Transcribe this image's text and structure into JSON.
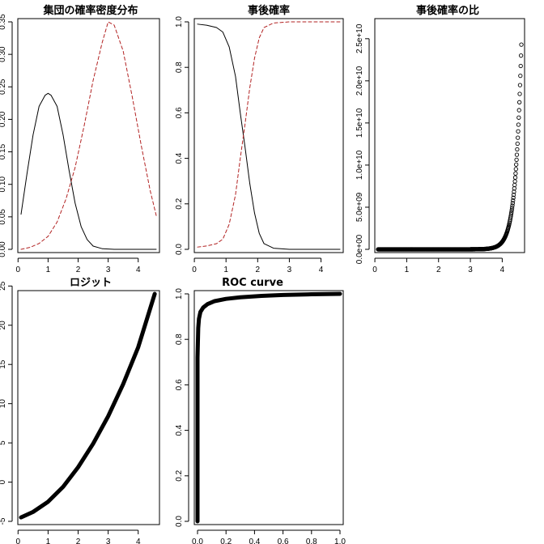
{
  "chart_data": [
    {
      "type": "line",
      "title": "集団の確率密度分布",
      "xlim": [
        0.1,
        4.6
      ],
      "ylim": [
        0,
        0.35
      ],
      "xticks": [
        "0",
        "1",
        "2",
        "3",
        "4"
      ],
      "yticks": [
        "0.00",
        "0.05",
        "0.10",
        "0.15",
        "0.20",
        "0.25",
        "0.30",
        "0.35"
      ],
      "series": [
        {
          "style": "solid",
          "color": "#000000",
          "x": [
            0.1,
            0.3,
            0.5,
            0.7,
            0.9,
            1.0,
            1.1,
            1.3,
            1.5,
            1.7,
            1.9,
            2.1,
            2.3,
            2.5,
            2.8,
            3.2,
            3.6,
            4.0,
            4.6
          ],
          "y": [
            0.054,
            0.117,
            0.176,
            0.22,
            0.237,
            0.24,
            0.237,
            0.22,
            0.176,
            0.121,
            0.071,
            0.035,
            0.015,
            0.005,
            0.001,
            0.0,
            0.0,
            0.0,
            0.0
          ]
        },
        {
          "style": "dashed",
          "color": "#B22222",
          "x": [
            0.1,
            0.4,
            0.7,
            1.0,
            1.3,
            1.6,
            1.9,
            2.2,
            2.5,
            2.8,
            3.0,
            3.2,
            3.5,
            3.8,
            4.1,
            4.4,
            4.6
          ],
          "y": [
            0.0,
            0.003,
            0.009,
            0.02,
            0.042,
            0.078,
            0.126,
            0.19,
            0.26,
            0.318,
            0.35,
            0.345,
            0.305,
            0.235,
            0.16,
            0.09,
            0.052
          ]
        }
      ]
    },
    {
      "type": "line",
      "title": "事後確率",
      "xlim": [
        0.1,
        4.6
      ],
      "ylim": [
        0,
        1
      ],
      "xticks": [
        "0",
        "1",
        "2",
        "3",
        "4"
      ],
      "yticks": [
        "0.0",
        "0.2",
        "0.4",
        "0.6",
        "0.8",
        "1.0"
      ],
      "series": [
        {
          "style": "solid",
          "color": "#000000",
          "x": [
            0.1,
            0.4,
            0.7,
            0.9,
            1.1,
            1.3,
            1.45,
            1.6,
            1.75,
            1.9,
            2.05,
            2.2,
            2.5,
            3.0,
            4.6
          ],
          "y": [
            0.99,
            0.985,
            0.975,
            0.955,
            0.89,
            0.76,
            0.6,
            0.45,
            0.29,
            0.16,
            0.07,
            0.025,
            0.005,
            0.0,
            0.0
          ]
        },
        {
          "style": "dashed",
          "color": "#B22222",
          "x": [
            0.1,
            0.4,
            0.7,
            0.9,
            1.1,
            1.3,
            1.45,
            1.6,
            1.75,
            1.9,
            2.05,
            2.2,
            2.5,
            3.0,
            4.6
          ],
          "y": [
            0.01,
            0.015,
            0.025,
            0.045,
            0.11,
            0.24,
            0.4,
            0.55,
            0.71,
            0.84,
            0.93,
            0.975,
            0.995,
            1.0,
            1.0
          ]
        }
      ]
    },
    {
      "type": "scatter",
      "title": "事後確率の比",
      "xlim": [
        0.1,
        4.6
      ],
      "ylim": [
        0,
        27000000000.0
      ],
      "xticks": [
        "0",
        "1",
        "2",
        "3",
        "4"
      ],
      "yticks": [
        "0.0e+00",
        "5.0e+09",
        "1.0e+10",
        "1.5e+10",
        "2.0e+10",
        "2.5e+10"
      ],
      "curve": {
        "form": "exp",
        "a": 0.25,
        "b": 5.5
      },
      "series": [
        {
          "marker": "open-circle",
          "n": 450
        }
      ]
    },
    {
      "type": "line",
      "title": "ロジット",
      "xlim": [
        0.1,
        4.6
      ],
      "ylim": [
        -5,
        24
      ],
      "xticks": [
        "0",
        "1",
        "2",
        "3",
        "4"
      ],
      "yticks": [
        "-5",
        "0",
        "5",
        "10",
        "15",
        "20",
        "25"
      ],
      "series": [
        {
          "style": "thick",
          "color": "#000000",
          "x": [
            0.1,
            0.5,
            1.0,
            1.5,
            2.0,
            2.5,
            3.0,
            3.5,
            4.0,
            4.55
          ],
          "y": [
            -4.5,
            -3.8,
            -2.5,
            -0.6,
            1.9,
            4.9,
            8.4,
            12.5,
            17.2,
            24.0
          ]
        }
      ]
    },
    {
      "type": "line",
      "title": "ROC curve",
      "xlim": [
        0,
        1
      ],
      "ylim": [
        0,
        1
      ],
      "xticks": [
        "0.0",
        "0.2",
        "0.4",
        "0.6",
        "0.8",
        "1.0"
      ],
      "yticks": [
        "0.0",
        "0.2",
        "0.4",
        "0.6",
        "0.8",
        "1.0"
      ],
      "series": [
        {
          "style": "thick",
          "color": "#000000",
          "x": [
            0.0,
            0.0,
            0.005,
            0.01,
            0.02,
            0.04,
            0.07,
            0.12,
            0.2,
            0.3,
            0.45,
            0.6,
            0.8,
            1.0
          ],
          "y": [
            0.0,
            0.72,
            0.85,
            0.89,
            0.92,
            0.94,
            0.955,
            0.968,
            0.978,
            0.985,
            0.991,
            0.995,
            0.998,
            1.0
          ]
        }
      ]
    }
  ]
}
